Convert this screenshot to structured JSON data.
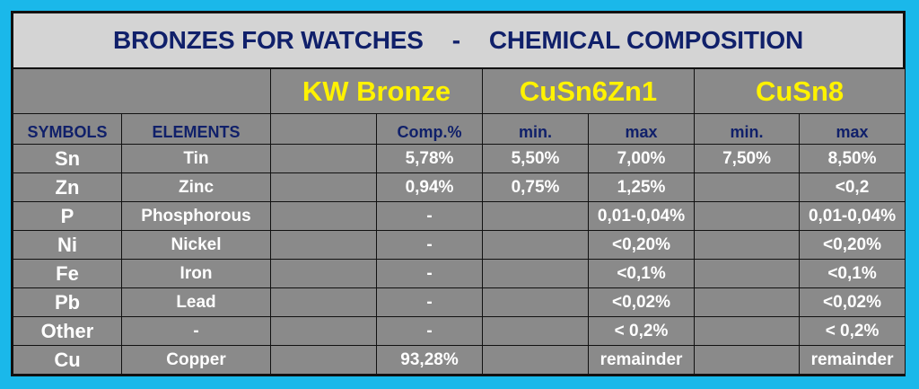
{
  "title": {
    "left": "BRONZES FOR WATCHES",
    "separator": "-",
    "right": "CHEMICAL COMPOSITION"
  },
  "alloys": [
    "KW Bronze",
    "CuSn6Zn1",
    "CuSn8"
  ],
  "subheaders": {
    "symbols": "SYMBOLS",
    "elements": "ELEMENTS",
    "kw_blank": "",
    "kw_comp": "Comp.%",
    "a_min": "min.",
    "a_max": "max",
    "b_min": "min.",
    "b_max": "max"
  },
  "rows": [
    {
      "symbol": "Sn",
      "element": "Tin",
      "kw_blank": "",
      "kw_comp": "5,78%",
      "a_min": "5,50%",
      "a_max": "7,00%",
      "b_min": "7,50%",
      "b_max": "8,50%"
    },
    {
      "symbol": "Zn",
      "element": "Zinc",
      "kw_blank": "",
      "kw_comp": "0,94%",
      "a_min": "0,75%",
      "a_max": "1,25%",
      "b_min": "",
      "b_max": "<0,2"
    },
    {
      "symbol": "P",
      "element": "Phosphorous",
      "kw_blank": "",
      "kw_comp": "-",
      "a_min": "",
      "a_max": "0,01-0,04%",
      "b_min": "",
      "b_max": "0,01-0,04%"
    },
    {
      "symbol": "Ni",
      "element": "Nickel",
      "kw_blank": "",
      "kw_comp": "-",
      "a_min": "",
      "a_max": "<0,20%",
      "b_min": "",
      "b_max": "<0,20%"
    },
    {
      "symbol": "Fe",
      "element": "Iron",
      "kw_blank": "",
      "kw_comp": "-",
      "a_min": "",
      "a_max": "<0,1%",
      "b_min": "",
      "b_max": "<0,1%"
    },
    {
      "symbol": "Pb",
      "element": "Lead",
      "kw_blank": "",
      "kw_comp": "-",
      "a_min": "",
      "a_max": "<0,02%",
      "b_min": "",
      "b_max": "<0,02%"
    },
    {
      "symbol": "Other",
      "element": "-",
      "kw_blank": "",
      "kw_comp": "-",
      "a_min": "",
      "a_max": "< 0,2%",
      "b_min": "",
      "b_max": "< 0,2%"
    },
    {
      "symbol": "Cu",
      "element": "Copper",
      "kw_blank": "",
      "kw_comp": "93,28%",
      "a_min": "",
      "a_max": "remainder",
      "b_min": "",
      "b_max": "remainder"
    }
  ],
  "colors": {
    "background": "#1ab8ea",
    "title_bg": "#d4d4d4",
    "cell_bg": "#8a8a8a",
    "title_text": "#10206a",
    "alloy_text": "#fff200",
    "data_text": "#ffffff"
  }
}
